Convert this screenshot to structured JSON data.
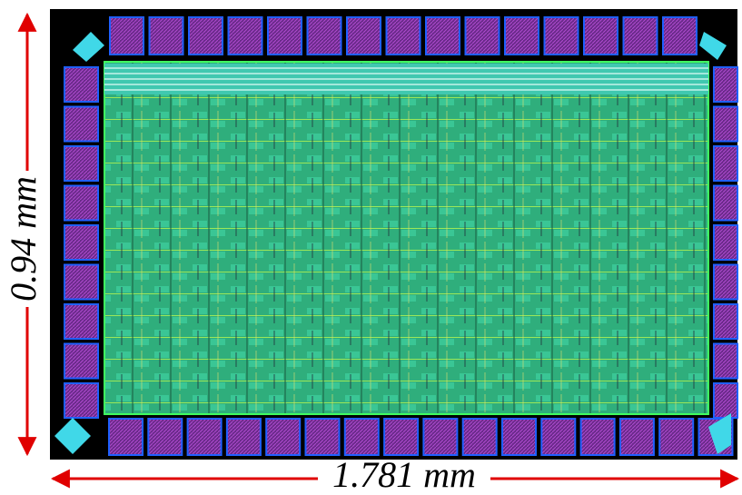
{
  "dimensions": {
    "height_label": "0.94 mm",
    "width_label": "1.781 mm"
  }
}
